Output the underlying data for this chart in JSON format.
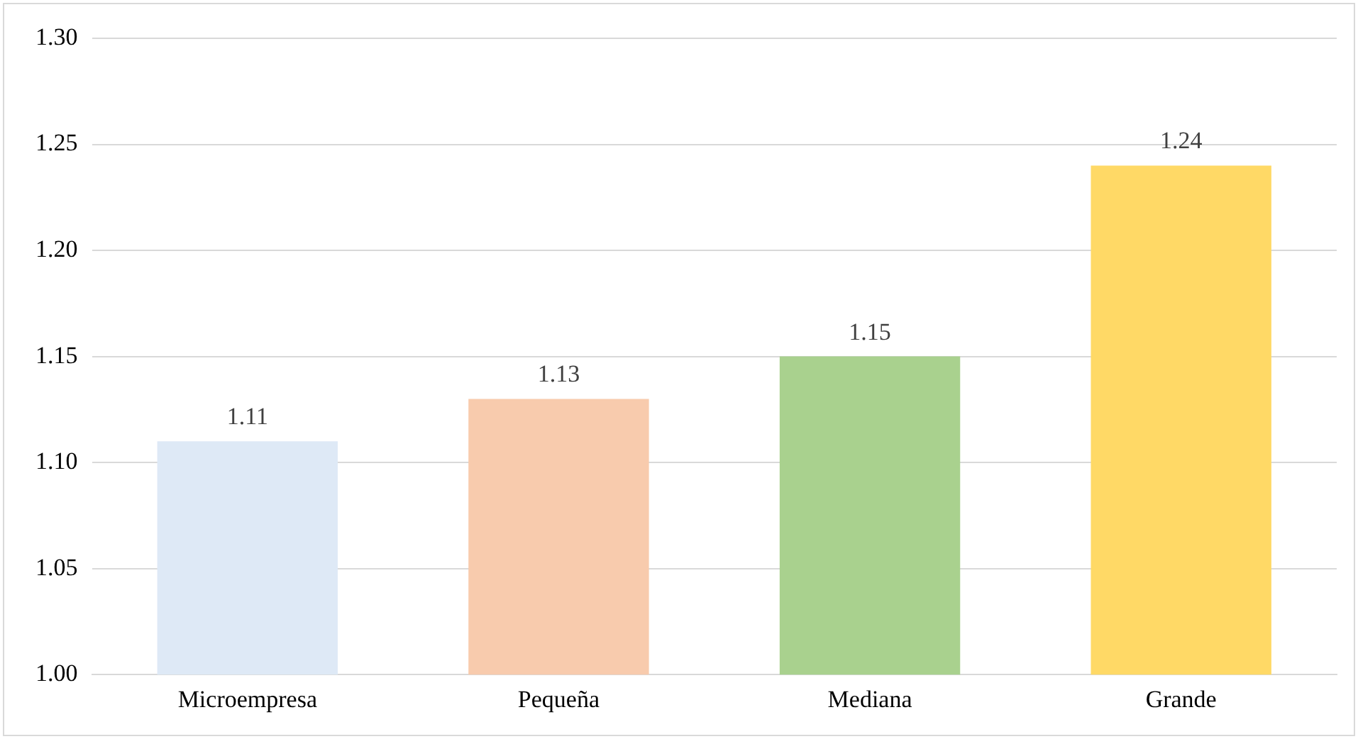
{
  "chart_data": {
    "type": "bar",
    "categories": [
      "Microempresa",
      "Pequeña",
      "Mediana",
      "Grande"
    ],
    "values": [
      1.11,
      1.13,
      1.15,
      1.24
    ],
    "colors": [
      "#dee9f6",
      "#f8cbad",
      "#a9d18e",
      "#ffd966"
    ],
    "ylim": [
      1.0,
      1.3
    ],
    "yticks": [
      {
        "value": 1.0,
        "label": "1.00"
      },
      {
        "value": 1.05,
        "label": "1.05"
      },
      {
        "value": 1.1,
        "label": "1.10"
      },
      {
        "value": 1.15,
        "label": "1.15"
      },
      {
        "value": 1.2,
        "label": "1.20"
      },
      {
        "value": 1.25,
        "label": "1.25"
      },
      {
        "value": 1.3,
        "label": "1.30"
      }
    ],
    "grid": "y",
    "data_labels": true,
    "legend": false
  }
}
